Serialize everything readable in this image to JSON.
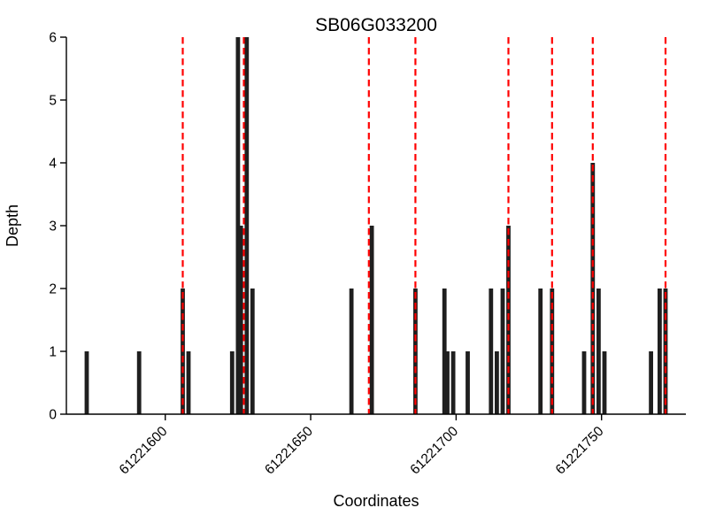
{
  "chart_data": {
    "type": "bar",
    "title": "SB06G033200",
    "xlabel": "Coordinates",
    "ylabel": "Depth",
    "xlim": [
      61221566,
      61221779
    ],
    "ylim": [
      0,
      6
    ],
    "xticks": [
      61221600,
      61221650,
      61221700,
      61221750
    ],
    "yticks": [
      0,
      1,
      2,
      3,
      4,
      5,
      6
    ],
    "grid": false,
    "legend": "none",
    "bar_color": "#1f1f1f",
    "vline_color": "#ff0000",
    "vline_style": "dashed",
    "bars": [
      {
        "x": 61221573,
        "depth": 1
      },
      {
        "x": 61221591,
        "depth": 1
      },
      {
        "x": 61221606,
        "depth": 2
      },
      {
        "x": 61221608,
        "depth": 1
      },
      {
        "x": 61221623,
        "depth": 1
      },
      {
        "x": 61221625,
        "depth": 6
      },
      {
        "x": 61221626,
        "depth": 3
      },
      {
        "x": 61221628,
        "depth": 6
      },
      {
        "x": 61221630,
        "depth": 2
      },
      {
        "x": 61221664,
        "depth": 2
      },
      {
        "x": 61221671,
        "depth": 3
      },
      {
        "x": 61221686,
        "depth": 2
      },
      {
        "x": 61221696,
        "depth": 2
      },
      {
        "x": 61221697,
        "depth": 1
      },
      {
        "x": 61221699,
        "depth": 1
      },
      {
        "x": 61221704,
        "depth": 1
      },
      {
        "x": 61221712,
        "depth": 2
      },
      {
        "x": 61221714,
        "depth": 1
      },
      {
        "x": 61221716,
        "depth": 2
      },
      {
        "x": 61221718,
        "depth": 3
      },
      {
        "x": 61221729,
        "depth": 2
      },
      {
        "x": 61221733,
        "depth": 2
      },
      {
        "x": 61221744,
        "depth": 1
      },
      {
        "x": 61221747,
        "depth": 4
      },
      {
        "x": 61221749,
        "depth": 2
      },
      {
        "x": 61221751,
        "depth": 1
      },
      {
        "x": 61221767,
        "depth": 1
      },
      {
        "x": 61221770,
        "depth": 2
      },
      {
        "x": 61221772,
        "depth": 2
      }
    ],
    "vlines": [
      61221606,
      61221627,
      61221670,
      61221686,
      61221718,
      61221733,
      61221747,
      61221772
    ]
  }
}
